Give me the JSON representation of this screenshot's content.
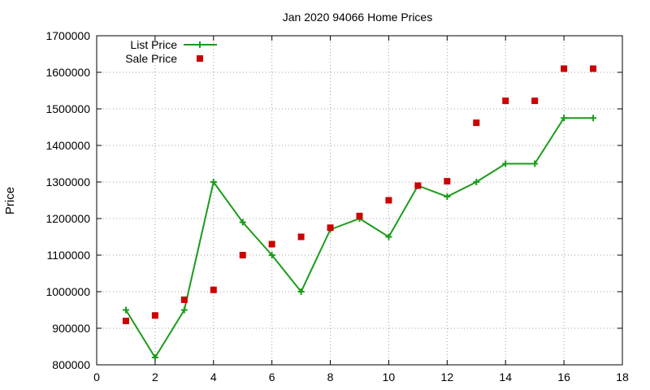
{
  "chart_data": {
    "type": "line",
    "title": "Jan 2020 94066 Home Prices",
    "xlabel": "",
    "ylabel": "Price",
    "xlim": [
      0,
      18
    ],
    "ylim": [
      800000,
      1700000
    ],
    "x_ticks": [
      "0",
      "2",
      "4",
      "6",
      "8",
      "10",
      "12",
      "14",
      "16",
      "18"
    ],
    "y_ticks": [
      "800000",
      "900000",
      "1000000",
      "1100000",
      "1200000",
      "1300000",
      "1400000",
      "1500000",
      "1600000",
      "1700000"
    ],
    "grid": true,
    "legend_position": "top-left",
    "series": [
      {
        "name": "List Price",
        "style": "linespoints",
        "marker": "plus",
        "color": "#1a9c1a",
        "x": [
          1,
          2,
          3,
          4,
          5,
          6,
          7,
          8,
          9,
          10,
          11,
          12,
          13,
          14,
          15,
          16,
          17
        ],
        "y": [
          950000,
          820000,
          950000,
          1300000,
          1190000,
          1100000,
          1000000,
          1170000,
          1200000,
          1150000,
          1290000,
          1260000,
          1300000,
          1350000,
          1350000,
          1475000,
          1475000
        ]
      },
      {
        "name": "Sale Price",
        "style": "points",
        "marker": "square",
        "color": "#cc0000",
        "x": [
          1,
          2,
          3,
          4,
          5,
          6,
          7,
          8,
          9,
          10,
          11,
          12,
          13,
          14,
          15,
          16,
          17
        ],
        "y": [
          920000,
          935000,
          978000,
          1005000,
          1100000,
          1130000,
          1150000,
          1175000,
          1207000,
          1250000,
          1290000,
          1302000,
          1462000,
          1522000,
          1522000,
          1610000,
          1610000
        ]
      }
    ]
  }
}
